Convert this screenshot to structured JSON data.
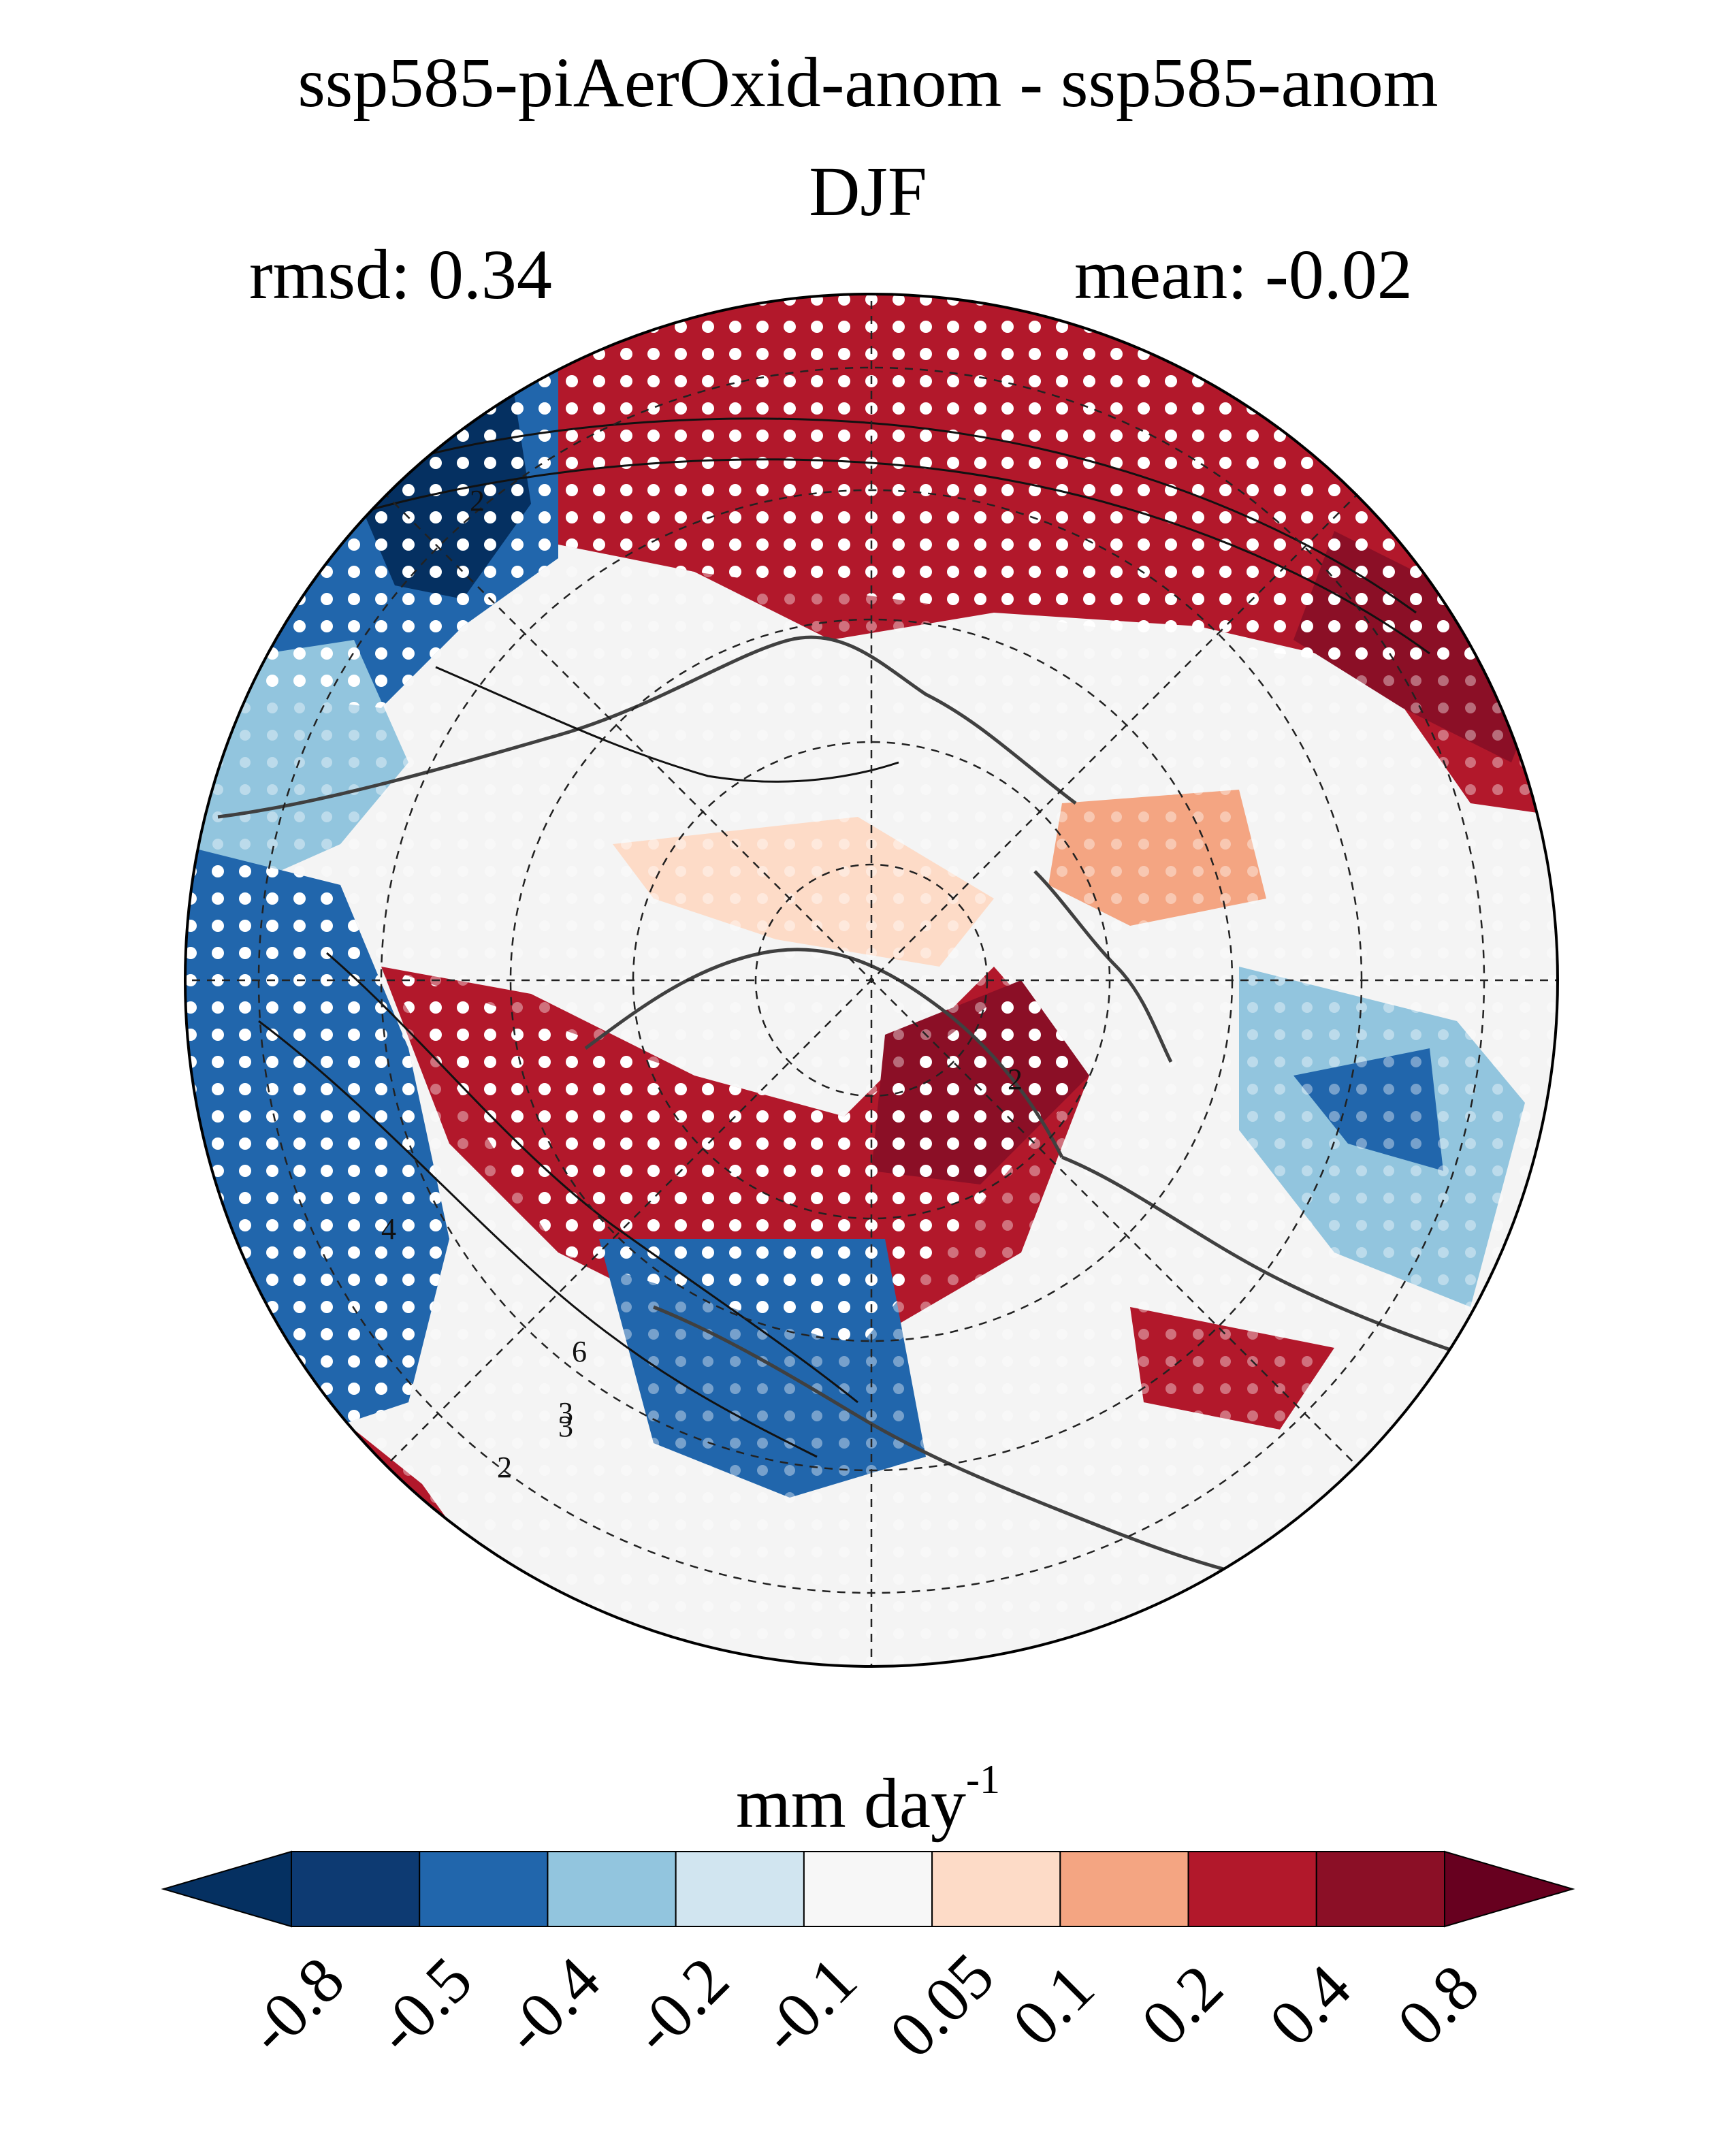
{
  "title": {
    "line1": "ssp585-piAerOxid-anom - ssp585-anom",
    "line2": "DJF"
  },
  "stats": {
    "rmsd_label": "rmsd: 0.34",
    "mean_label": "mean: -0.02"
  },
  "map": {
    "projection": "north-polar-stereographic",
    "variable": "precipitation difference",
    "stippling": true,
    "contours": true,
    "contour_labels": [
      "2",
      "2",
      "3",
      "4",
      "6",
      "3",
      "2"
    ]
  },
  "colorbar": {
    "unit": "mm day",
    "unit_exponent": "-1",
    "ticks": [
      "-0.8",
      "-0.5",
      "-0.4",
      "-0.2",
      "-0.1",
      "0.05",
      "0.1",
      "0.2",
      "0.4",
      "0.8"
    ],
    "colors": [
      "#053061",
      "#0d3a72",
      "#2166ac",
      "#92c5de",
      "#d1e5f0",
      "#f7f7f7",
      "#fddbc7",
      "#f4a582",
      "#b2182b",
      "#8b0f26",
      "#67001f"
    ]
  }
}
